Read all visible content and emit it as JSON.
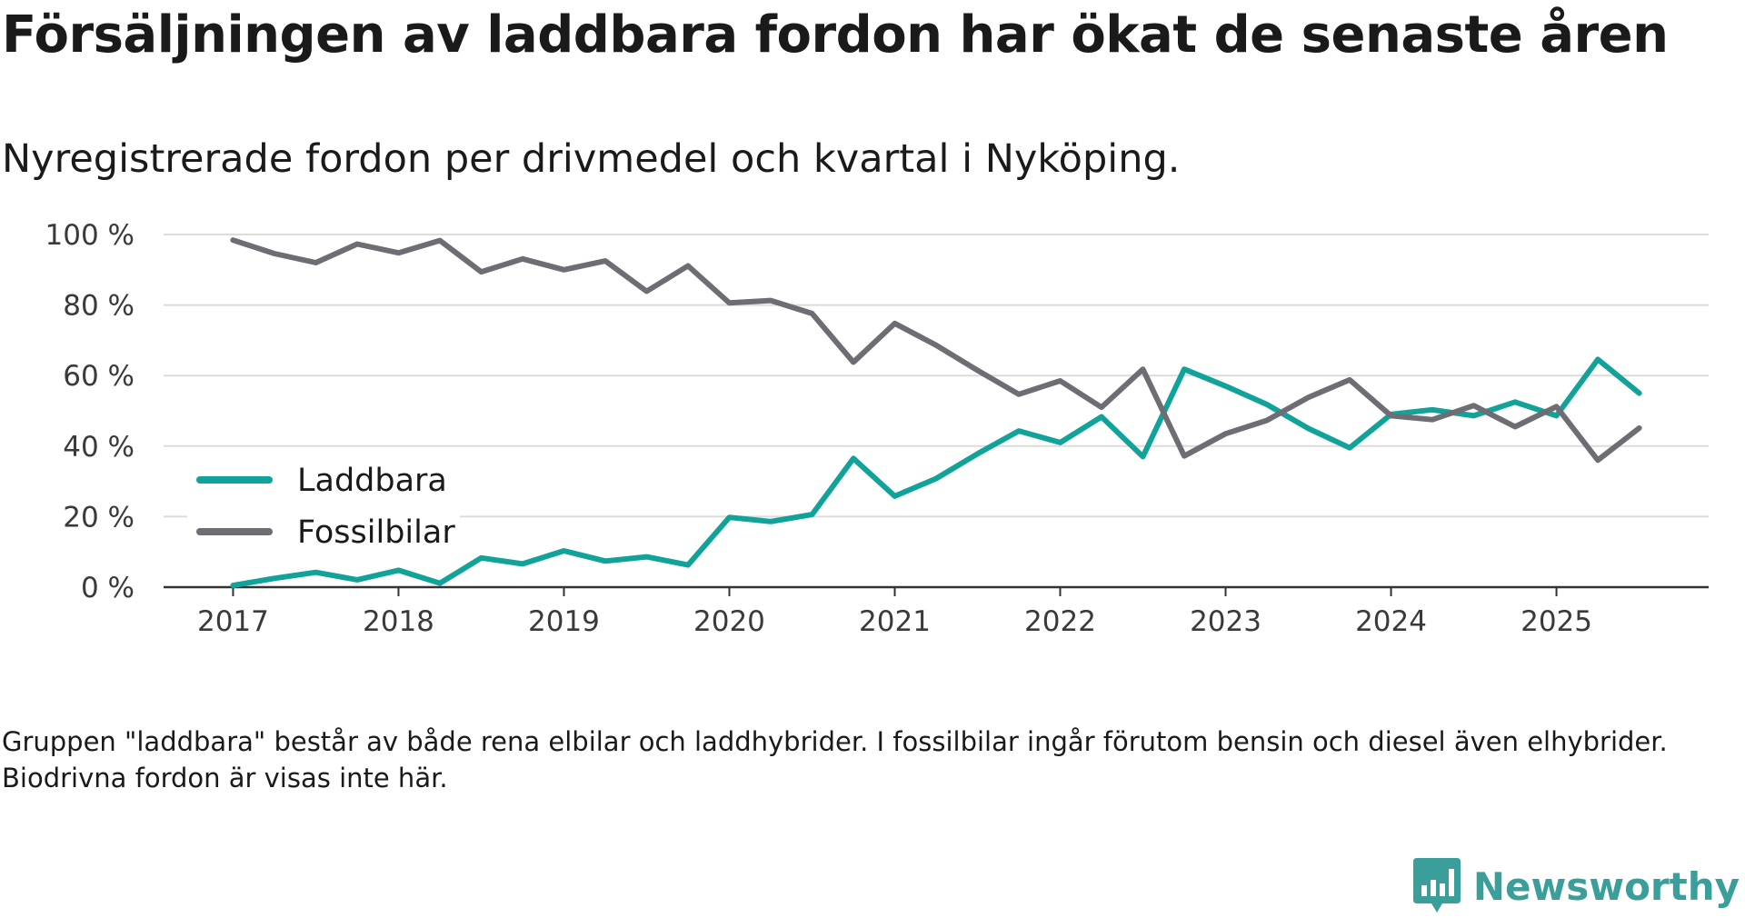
{
  "title": "Försäljningen av laddbara fordon har ökat de senaste åren",
  "subtitle": "Nyregistrerade fordon per drivmedel och kvartal i Nyköping.",
  "note": "Gruppen \"laddbara\" består av både rena elbilar och laddhybrider. I fossilbilar ingår förutom bensin och diesel även elhybrider. Biodrivna fordon är visas inte här.",
  "brand": {
    "name": "Newsworthy",
    "color": "#3a9e9a",
    "icon": "bar-chart-badge-icon"
  },
  "chart_data": {
    "type": "line",
    "title": "Försäljningen av laddbara fordon har ökat de senaste åren",
    "subtitle": "Nyregistrerade fordon per drivmedel och kvartal i Nyköping.",
    "xlabel": "",
    "ylabel": "",
    "ylim": [
      0,
      100
    ],
    "xlim": [
      2016.58,
      2025.92
    ],
    "grid": true,
    "legend": "left",
    "yticks": [
      0,
      20,
      40,
      60,
      80,
      100
    ],
    "ytick_labels": [
      "0 %",
      "20 %",
      "40 %",
      "60 %",
      "80 %",
      "100 %"
    ],
    "xticks": [
      2017,
      2018,
      2019,
      2020,
      2021,
      2022,
      2023,
      2024,
      2025
    ],
    "xtick_labels": [
      "2017",
      "2018",
      "2019",
      "2020",
      "2021",
      "2022",
      "2023",
      "2024",
      "2025"
    ],
    "x": [
      2017.0,
      2017.25,
      2017.5,
      2017.75,
      2018.0,
      2018.25,
      2018.5,
      2018.75,
      2019.0,
      2019.25,
      2019.5,
      2019.75,
      2020.0,
      2020.25,
      2020.5,
      2020.75,
      2021.0,
      2021.25,
      2021.5,
      2021.75,
      2022.0,
      2022.25,
      2022.5,
      2022.75,
      2023.0,
      2023.25,
      2023.5,
      2023.75,
      2024.0,
      2024.25,
      2024.5,
      2024.75,
      2025.0,
      2025.25,
      2025.5
    ],
    "series": [
      {
        "name": "Laddbara",
        "color": "#11a39a",
        "values": [
          0.5,
          2.5,
          4.2,
          2.1,
          4.8,
          1.1,
          8.3,
          6.6,
          10.3,
          7.4,
          8.6,
          6.3,
          19.8,
          18.6,
          20.6,
          36.5,
          25.8,
          30.8,
          37.8,
          44.3,
          41.0,
          48.3,
          37.0,
          61.8,
          57.0,
          51.8,
          45.0,
          39.5,
          49.0,
          50.3,
          48.6,
          52.5,
          48.6,
          64.6,
          55.0
        ]
      },
      {
        "name": "Fossilbilar",
        "color": "#6e6d74",
        "values": [
          98.4,
          94.6,
          92.0,
          97.3,
          94.8,
          98.3,
          89.4,
          93.1,
          90.0,
          92.5,
          83.9,
          91.1,
          80.6,
          81.3,
          77.6,
          63.8,
          74.8,
          68.6,
          61.5,
          54.7,
          58.5,
          51.0,
          61.8,
          37.2,
          43.5,
          47.3,
          53.8,
          58.8,
          48.6,
          47.5,
          51.5,
          45.5,
          51.2,
          36.0,
          45.1
        ]
      }
    ]
  }
}
